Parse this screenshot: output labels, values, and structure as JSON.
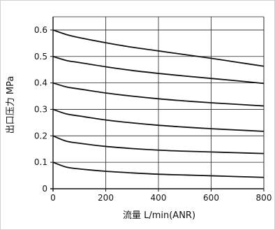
{
  "chart_data": {
    "type": "line",
    "xlabel": "流量 L/min(ANR)",
    "ylabel": "出口压力 MPa",
    "xlim": [
      0,
      800
    ],
    "ylim": [
      0,
      0.65
    ],
    "x_ticks": [
      "0",
      "200",
      "400",
      "600",
      "800"
    ],
    "y_ticks": [
      "0",
      "0.1",
      "0.2",
      "0.3",
      "0.4",
      "0.5",
      "0.6"
    ],
    "x_tick_values": [
      0,
      200,
      400,
      600,
      800
    ],
    "y_tick_values": [
      0,
      0.1,
      0.2,
      0.3,
      0.4,
      0.5,
      0.6
    ],
    "grid": true,
    "series": [
      {
        "x": [
          0,
          50,
          100,
          200,
          300,
          400,
          500,
          600,
          700,
          800
        ],
        "values": [
          0.1,
          0.082,
          0.075,
          0.066,
          0.06,
          0.055,
          0.052,
          0.049,
          0.046,
          0.043
        ]
      },
      {
        "x": [
          0,
          50,
          100,
          200,
          300,
          400,
          500,
          600,
          700,
          800
        ],
        "values": [
          0.2,
          0.18,
          0.172,
          0.16,
          0.152,
          0.146,
          0.142,
          0.139,
          0.136,
          0.133
        ]
      },
      {
        "x": [
          0,
          50,
          100,
          200,
          300,
          400,
          500,
          600,
          700,
          800
        ],
        "values": [
          0.3,
          0.283,
          0.275,
          0.26,
          0.249,
          0.24,
          0.233,
          0.227,
          0.222,
          0.217
        ]
      },
      {
        "x": [
          0,
          50,
          100,
          200,
          300,
          400,
          500,
          600,
          700,
          800
        ],
        "values": [
          0.4,
          0.385,
          0.377,
          0.362,
          0.35,
          0.34,
          0.332,
          0.325,
          0.319,
          0.313
        ]
      },
      {
        "x": [
          0,
          50,
          100,
          200,
          300,
          400,
          500,
          600,
          700,
          800
        ],
        "values": [
          0.5,
          0.485,
          0.477,
          0.461,
          0.447,
          0.436,
          0.426,
          0.417,
          0.408,
          0.398
        ]
      },
      {
        "x": [
          0,
          50,
          100,
          200,
          300,
          400,
          500,
          600,
          700,
          800
        ],
        "values": [
          0.6,
          0.583,
          0.571,
          0.552,
          0.535,
          0.521,
          0.507,
          0.493,
          0.478,
          0.463
        ]
      }
    ],
    "colors": {
      "line": "#111111",
      "grid": "#222222",
      "axis": "#111111",
      "frame": "#d0d0d0"
    }
  }
}
